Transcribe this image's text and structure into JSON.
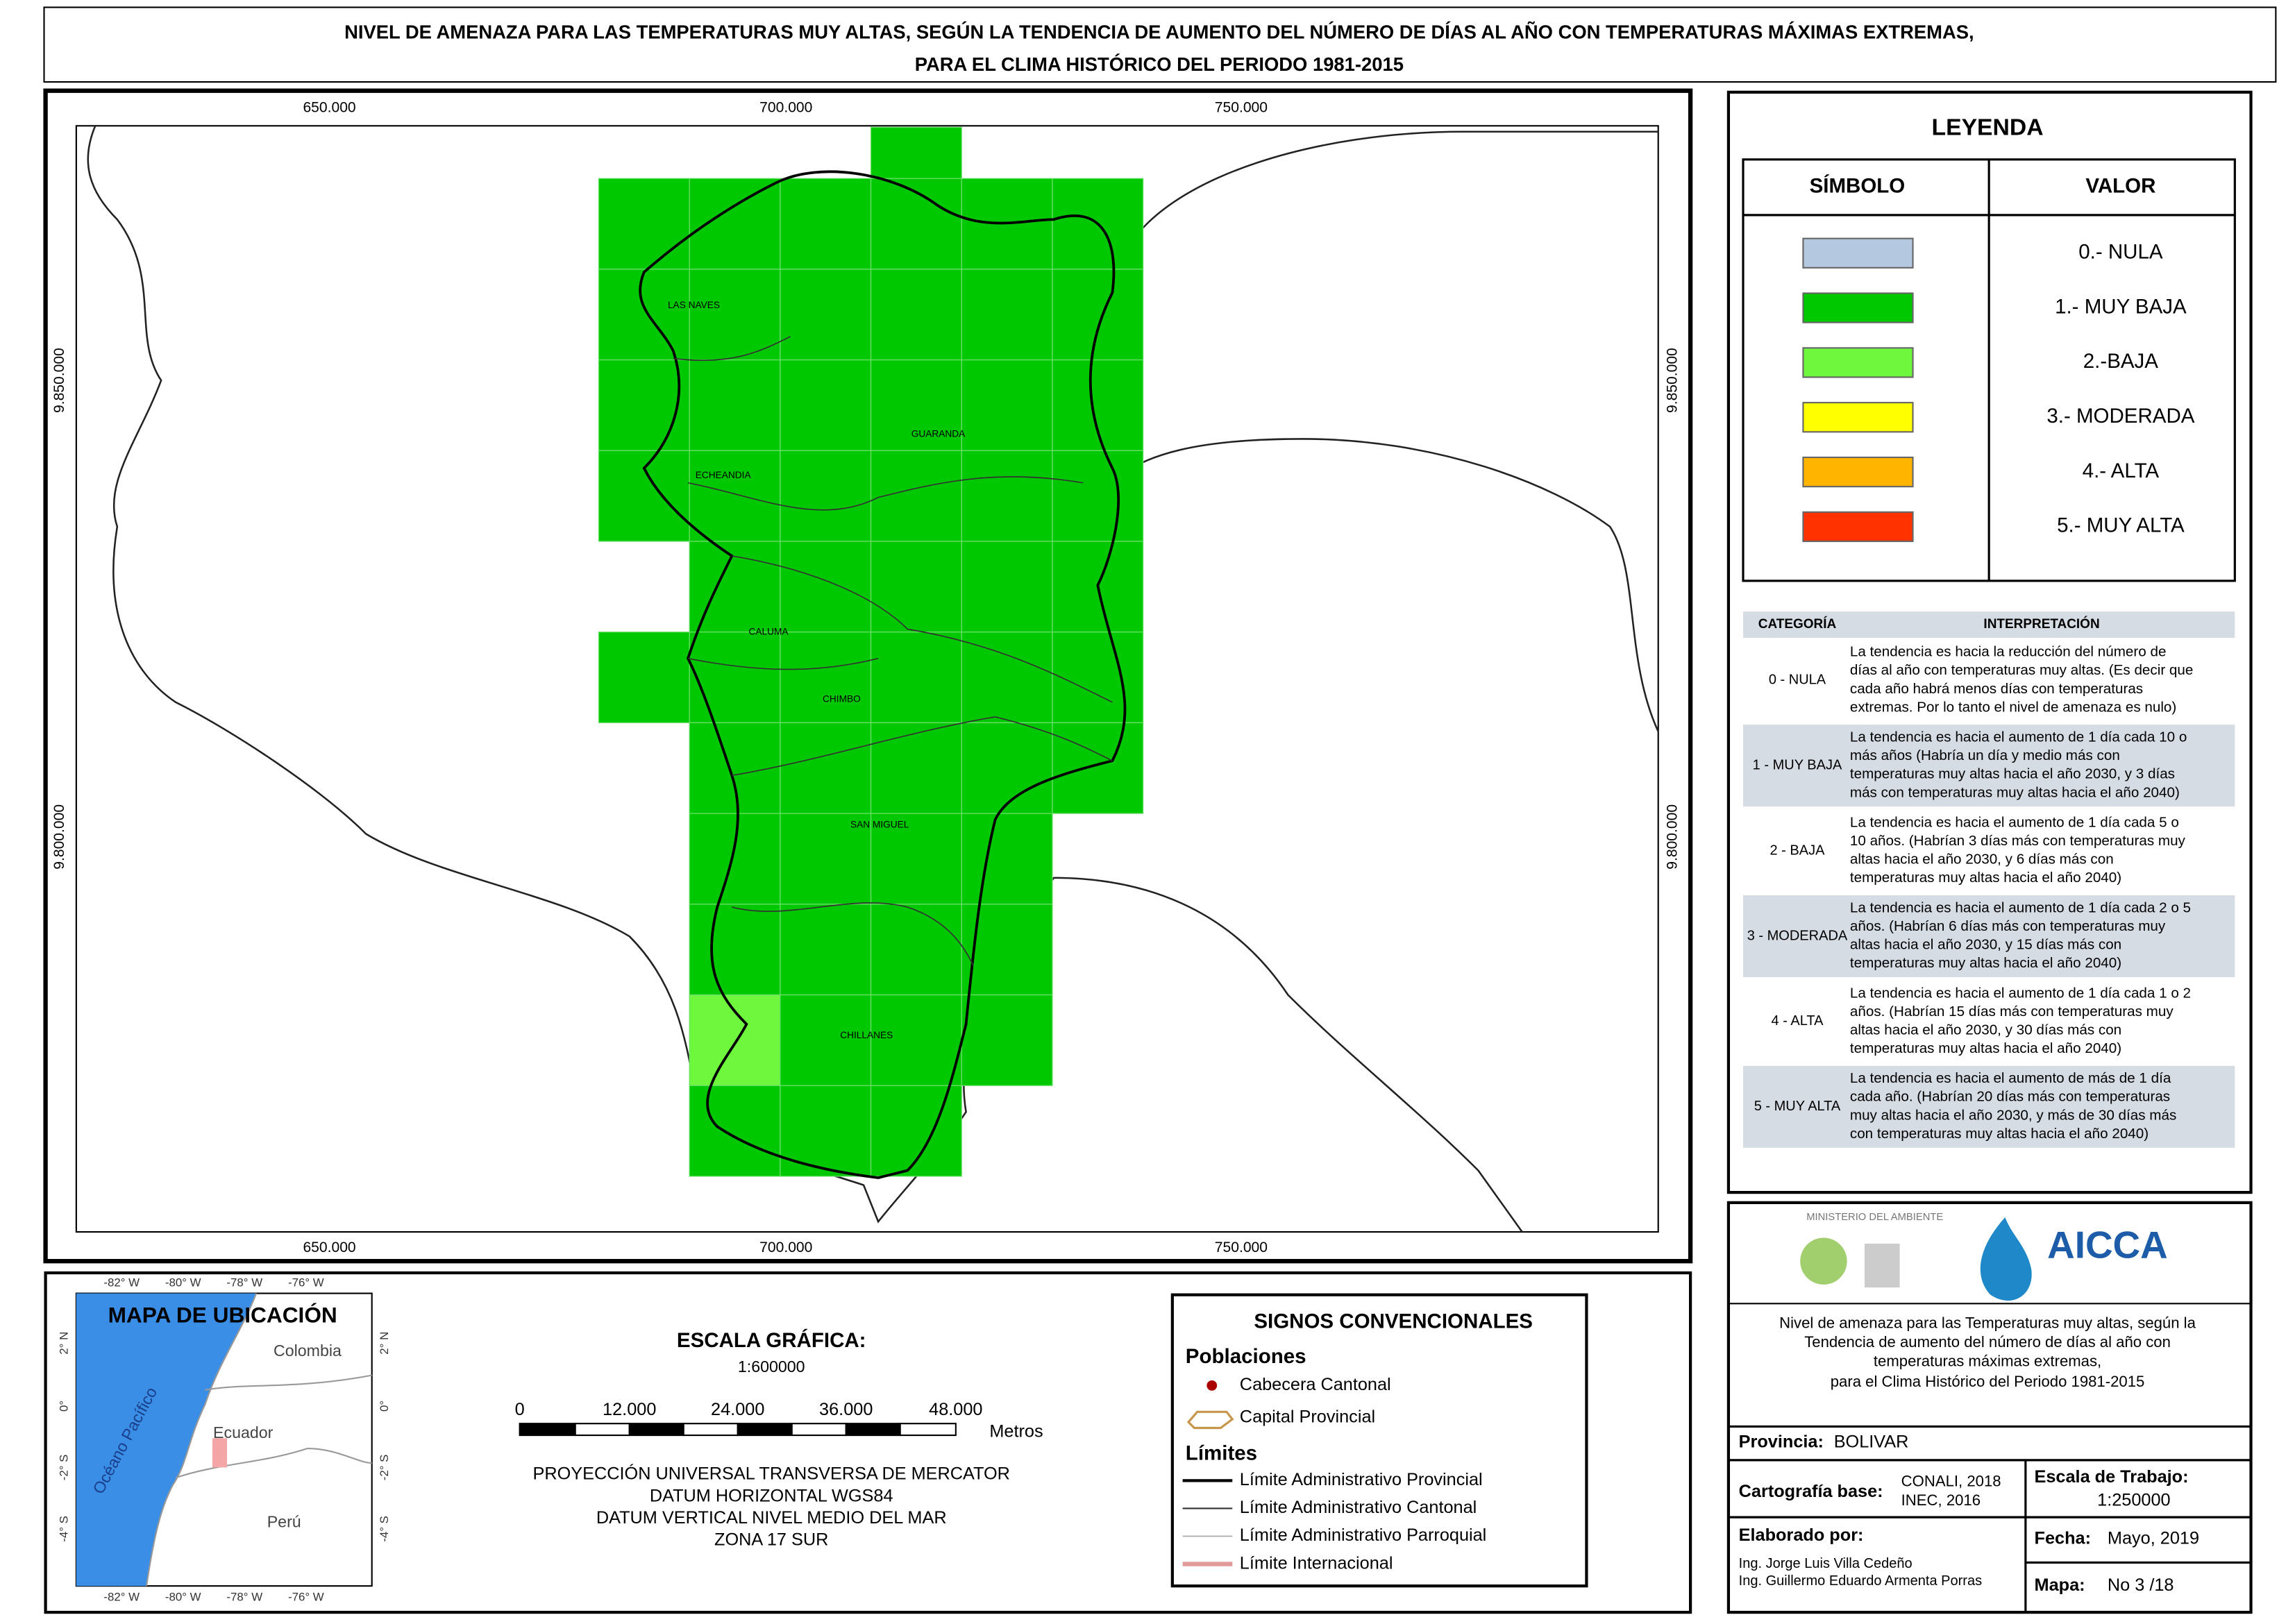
{
  "title": [
    "NIVEL DE AMENAZA PARA LAS TEMPERATURAS MUY ALTAS, SEGÚN LA TENDENCIA DE AUMENTO DEL NÚMERO DE DÍAS AL AÑO CON TEMPERATURAS MÁXIMAS EXTREMAS,",
    "PARA EL CLIMA HISTÓRICO DEL PERIODO 1981-2015"
  ],
  "map": {
    "x_labels": [
      "650.000",
      "700.000",
      "750.000"
    ],
    "y_labels": [
      "9.850.000",
      "9.800.000"
    ],
    "places": [
      "LAS NAVES",
      "GUARANDA",
      "ECHEANDIA",
      "CALUMA",
      "CHIMBO",
      "SAN MIGUEL",
      "CHILLANES"
    ]
  },
  "legend": {
    "title": "LEYENDA",
    "headers": [
      "SÍMBOLO",
      "VALOR"
    ],
    "items": [
      {
        "label": "0.- NULA",
        "color": "#b4c8e0"
      },
      {
        "label": "1.- MUY BAJA",
        "color": "#00c800"
      },
      {
        "label": "2.-BAJA",
        "color": "#6ef73c"
      },
      {
        "label": "3.- MODERADA",
        "color": "#ffff00"
      },
      {
        "label": "4.- ALTA",
        "color": "#ffb400"
      },
      {
        "label": "5.- MUY ALTA",
        "color": "#ff3200"
      }
    ]
  },
  "interpretation": {
    "headers": [
      "CATEGORÍA",
      "INTERPRETACIÓN"
    ],
    "rows": [
      {
        "category": "0 - NULA",
        "text": [
          "La tendencia es hacia la reducción del número de",
          "días al año con temperaturas muy altas. (Es decir que",
          "cada año habrá menos días con temperaturas",
          "extremas. Por lo tanto el nivel de amenaza es nulo)"
        ]
      },
      {
        "category": "1 - MUY BAJA",
        "text": [
          "La tendencia es hacia el aumento de 1 día cada 10 o",
          "más años (Habría un día y medio más con",
          "temperaturas muy altas hacia el año 2030, y 3 días",
          "más con temperaturas muy altas hacia el año 2040)"
        ]
      },
      {
        "category": "2 - BAJA",
        "text": [
          "La tendencia es hacia el aumento de 1 día cada 5 o",
          "10 años. (Habrían 3 días más con temperaturas muy",
          "altas hacia el año 2030, y 6 días más con",
          "temperaturas muy altas hacia el año 2040)"
        ]
      },
      {
        "category": "3 - MODERADA",
        "text": [
          "La tendencia es hacia el aumento de 1 día cada 2 o 5",
          "años. (Habrían 6 días más con temperaturas muy",
          "altas hacia el año 2030, y 15 días más con",
          "temperaturas muy altas hacia el año 2040)"
        ]
      },
      {
        "category": "4 - ALTA",
        "text": [
          "La tendencia es hacia el aumento de 1 día cada 1 o 2",
          "años. (Habrían 15 días más con temperaturas muy",
          "altas hacia el año 2030, y 30 días más con",
          "temperaturas muy altas hacia el año 2040)"
        ]
      },
      {
        "category": "5 - MUY ALTA",
        "text": [
          "La tendencia es hacia el aumento de más de 1 día",
          "cada año. (Habrían 20 días más con temperaturas",
          "muy altas hacia el año 2030, y más de 30 días más",
          "con temperaturas muy altas hacia el año 2040)"
        ]
      }
    ]
  },
  "location_map": {
    "title": "MAPA DE UBICACIÓN",
    "lon_labels": [
      "-82° W",
      "-80° W",
      "-78° W",
      "-76° W"
    ],
    "lat_labels": [
      "2° N",
      "0°",
      "-2° S",
      "-4° S"
    ],
    "countries": [
      "Colombia",
      "Ecuador",
      "Perú"
    ],
    "ocean": "Océano Pacífico"
  },
  "scale": {
    "title": "ESCALA GRÁFICA:",
    "ratio": "1:600000",
    "ticks": [
      "0",
      "12.000",
      "24.000",
      "36.000",
      "48.000"
    ],
    "unit": "Metros",
    "projection": [
      "PROYECCIÓN UNIVERSAL TRANSVERSA DE MERCATOR",
      "DATUM HORIZONTAL WGS84",
      "DATUM VERTICAL NIVEL MEDIO DEL MAR",
      "ZONA 17 SUR"
    ]
  },
  "signs": {
    "title": "SIGNOS CONVENCIONALES",
    "populations_title": "Poblaciones",
    "populations": [
      "Cabecera Cantonal",
      "Capital Provincial"
    ],
    "limits_title": "Límites",
    "limits": [
      "Límite Administrativo Provincial",
      "Límite Administrativo Cantonal",
      "Límite Administrativo Parroquial",
      "Límite Internacional"
    ]
  },
  "info": {
    "ministry": "MINISTERIO DEL AMBIENTE",
    "logo": "AICCA",
    "description": [
      "Nivel de amenaza para las Temperaturas muy altas, según la",
      "Tendencia de aumento del número de días al año con",
      "temperaturas máximas extremas,",
      "para el Clima Histórico del Periodo 1981-2015"
    ],
    "province_label": "Provincia:",
    "province": "BOLIVAR",
    "cartography_label": "Cartografía base:",
    "cartography": [
      "CONALI, 2018",
      "INEC, 2016"
    ],
    "scale_label": "Escala de Trabajo:",
    "scale": "1:250000",
    "made_by_label": "Elaborado por:",
    "made_by": [
      "Ing. Jorge Luis Villa Cedeño",
      "Ing. Guillermo Eduardo Armenta Porras"
    ],
    "date_label": "Fecha:",
    "date": "Mayo, 2019",
    "map_label": "Mapa:",
    "map_number": "No 3 /18"
  }
}
